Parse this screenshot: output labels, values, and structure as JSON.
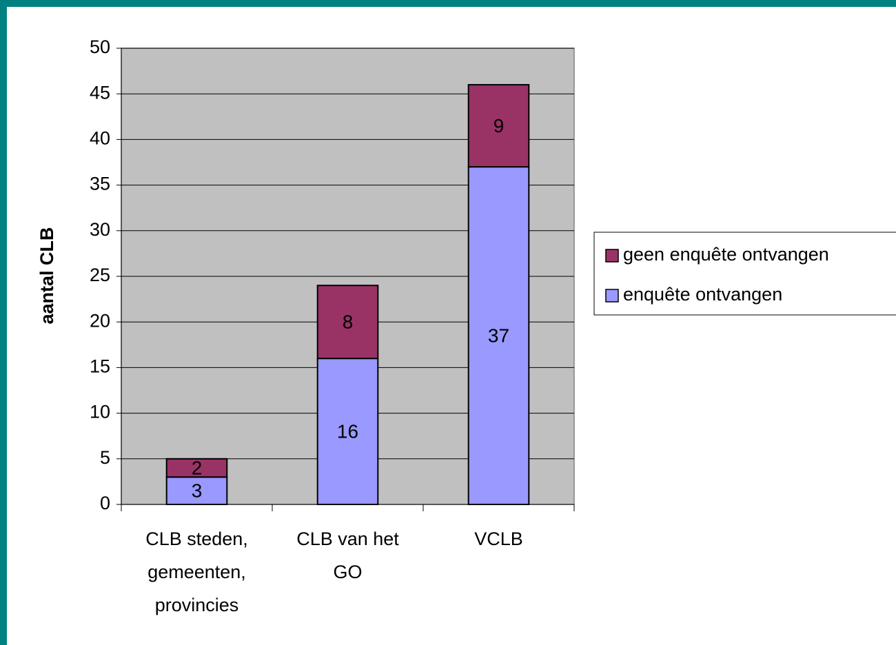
{
  "chart_data": {
    "type": "stacked_bar",
    "y_label": "aantal CLB",
    "categories": [
      "CLB steden, gemeenten, provincies",
      "CLB van het GO",
      "VCLB"
    ],
    "series": [
      {
        "name": "enquête ontvangen",
        "color": "#9999ff",
        "values": [
          3,
          16,
          37
        ]
      },
      {
        "name": "geen enquête ontvangen",
        "color": "#993366",
        "values": [
          2,
          8,
          9
        ]
      }
    ],
    "ylim": [
      0,
      50
    ],
    "yticks": [
      0,
      5,
      10,
      15,
      20,
      25,
      30,
      35,
      40,
      45,
      50
    ],
    "grid": true,
    "legend": "right",
    "plot_background": "#c0c0c0"
  }
}
